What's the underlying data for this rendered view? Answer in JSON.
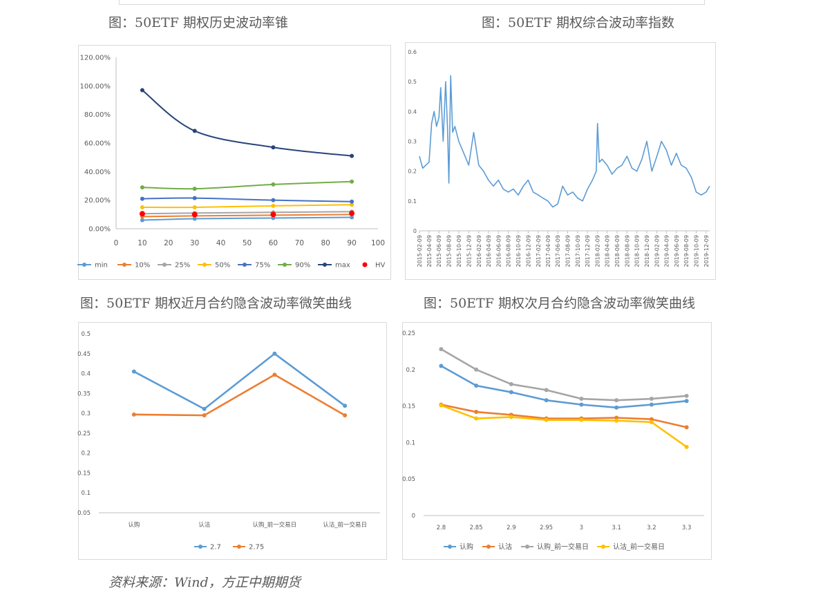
{
  "captions": {
    "c1": "图：50ETF 期权历史波动率锥",
    "c2": "图：50ETF 期权综合波动率指数",
    "c3": "图：50ETF 期权近月合约隐含波动率微笑曲线",
    "c4": "图：50ETF 期权次月合约隐含波动率微笑曲线"
  },
  "source": "资料来源：Wind，方正中期期货",
  "chart_data": [
    {
      "type": "line",
      "x": [
        10,
        30,
        60,
        90
      ],
      "xlim": [
        0,
        100
      ],
      "xticks": [
        0,
        10,
        20,
        30,
        40,
        50,
        60,
        70,
        80,
        90,
        100
      ],
      "ylim": [
        0,
        1.2
      ],
      "yticks": [
        "0.00%",
        "20.00%",
        "40.00%",
        "60.00%",
        "80.00%",
        "100.00%",
        "120.00%"
      ],
      "grid": false,
      "legend": "bottom",
      "series": [
        {
          "name": "min",
          "color": "#5b9bd5",
          "values": [
            0.06,
            0.07,
            0.075,
            0.08
          ]
        },
        {
          "name": "10%",
          "color": "#ed7d31",
          "values": [
            0.085,
            0.09,
            0.095,
            0.1
          ]
        },
        {
          "name": "25%",
          "color": "#a5a5a5",
          "values": [
            0.105,
            0.11,
            0.115,
            0.12
          ]
        },
        {
          "name": "50%",
          "color": "#ffc000",
          "values": [
            0.15,
            0.15,
            0.16,
            0.168
          ]
        },
        {
          "name": "75%",
          "color": "#4472c4",
          "values": [
            0.21,
            0.215,
            0.2,
            0.19
          ]
        },
        {
          "name": "90%",
          "color": "#70ad47",
          "values": [
            0.29,
            0.28,
            0.31,
            0.33
          ]
        },
        {
          "name": "max",
          "color": "#264478",
          "values": [
            0.97,
            0.685,
            0.57,
            0.51
          ]
        },
        {
          "name": "HV",
          "color": "#ff0000",
          "marker_only": true,
          "values": [
            0.105,
            0.1,
            0.1,
            0.108
          ]
        }
      ]
    },
    {
      "type": "line",
      "ylim": [
        0,
        0.6
      ],
      "yticks": [
        "0",
        "0.1",
        "0.2",
        "0.3",
        "0.4",
        "0.5",
        "0.6"
      ],
      "grid": false,
      "color": "#5b9bd5",
      "xticks": [
        "2015-02-09",
        "2015-04-09",
        "2015-06-09",
        "2015-08-09",
        "2015-10-09",
        "2015-12-09",
        "2016-02-09",
        "2016-04-09",
        "2016-06-09",
        "2016-08-09",
        "2016-10-09",
        "2016-12-09",
        "2017-02-09",
        "2017-04-09",
        "2017-06-09",
        "2017-08-09",
        "2017-10-09",
        "2017-12-09",
        "2018-02-09",
        "2018-04-09",
        "2018-06-09",
        "2018-08-09",
        "2018-10-09",
        "2018-12-09",
        "2019-02-09",
        "2019-04-09",
        "2019-06-09",
        "2019-08-09",
        "2019-10-09",
        "2019-12-09"
      ],
      "x": [
        "2015-02-09",
        "2015-03-01",
        "2015-03-20",
        "2015-04-09",
        "2015-04-25",
        "2015-05-10",
        "2015-05-25",
        "2015-06-09",
        "2015-06-20",
        "2015-07-05",
        "2015-07-20",
        "2015-08-01",
        "2015-08-09",
        "2015-08-20",
        "2015-09-01",
        "2015-09-15",
        "2015-10-09",
        "2015-11-09",
        "2015-12-09",
        "2016-01-09",
        "2016-02-09",
        "2016-03-09",
        "2016-04-09",
        "2016-05-09",
        "2016-06-09",
        "2016-07-09",
        "2016-08-09",
        "2016-09-09",
        "2016-10-09",
        "2016-11-09",
        "2016-12-09",
        "2017-01-09",
        "2017-02-09",
        "2017-03-09",
        "2017-04-09",
        "2017-05-09",
        "2017-06-09",
        "2017-07-09",
        "2017-08-09",
        "2017-09-09",
        "2017-10-09",
        "2017-11-09",
        "2017-12-09",
        "2018-01-09",
        "2018-02-01",
        "2018-02-09",
        "2018-02-20",
        "2018-03-09",
        "2018-04-09",
        "2018-05-09",
        "2018-06-09",
        "2018-07-09",
        "2018-08-09",
        "2018-09-09",
        "2018-10-09",
        "2018-11-09",
        "2018-12-09",
        "2019-01-09",
        "2019-02-09",
        "2019-03-09",
        "2019-04-09",
        "2019-05-09",
        "2019-06-09",
        "2019-07-09",
        "2019-08-09",
        "2019-09-09",
        "2019-10-09",
        "2019-11-09",
        "2019-12-09",
        "2019-12-31"
      ],
      "values": [
        0.25,
        0.21,
        0.22,
        0.23,
        0.36,
        0.4,
        0.35,
        0.38,
        0.48,
        0.3,
        0.5,
        0.34,
        0.16,
        0.52,
        0.33,
        0.35,
        0.3,
        0.26,
        0.22,
        0.33,
        0.22,
        0.2,
        0.17,
        0.15,
        0.17,
        0.14,
        0.13,
        0.14,
        0.12,
        0.15,
        0.17,
        0.13,
        0.12,
        0.11,
        0.1,
        0.08,
        0.09,
        0.15,
        0.12,
        0.13,
        0.11,
        0.1,
        0.14,
        0.17,
        0.2,
        0.36,
        0.23,
        0.24,
        0.22,
        0.19,
        0.21,
        0.22,
        0.25,
        0.21,
        0.2,
        0.24,
        0.3,
        0.2,
        0.25,
        0.3,
        0.27,
        0.22,
        0.26,
        0.22,
        0.21,
        0.18,
        0.13,
        0.12,
        0.13,
        0.15
      ]
    },
    {
      "type": "line",
      "categories": [
        "认购",
        "认沽",
        "认购_前一交易日",
        "认沽_前一交易日"
      ],
      "ylim": [
        0.05,
        0.5
      ],
      "yticks": [
        "0.05",
        "0.1",
        "0.15",
        "0.2",
        "0.25",
        "0.3",
        "0.35",
        "0.4",
        "0.45",
        "0.5"
      ],
      "grid": false,
      "legend": "bottom",
      "series": [
        {
          "name": "2.7",
          "color": "#5b9bd5",
          "values": [
            0.405,
            0.311,
            0.45,
            0.319
          ]
        },
        {
          "name": "2.75",
          "color": "#ed7d31",
          "values": [
            0.297,
            0.295,
            0.397,
            0.295
          ]
        }
      ]
    },
    {
      "type": "line",
      "categories": [
        "2.8",
        "2.85",
        "2.9",
        "2.95",
        "3",
        "3.1",
        "3.2",
        "3.3"
      ],
      "ylim": [
        0,
        0.25
      ],
      "yticks": [
        "0",
        "0.05",
        "0.1",
        "0.15",
        "0.2",
        "0.25"
      ],
      "grid": false,
      "legend": "bottom",
      "series": [
        {
          "name": "认购",
          "color": "#5b9bd5",
          "values": [
            0.205,
            0.178,
            0.169,
            0.158,
            0.152,
            0.148,
            0.152,
            0.157
          ]
        },
        {
          "name": "认沽",
          "color": "#ed7d31",
          "values": [
            0.152,
            0.142,
            0.138,
            0.133,
            0.133,
            0.134,
            0.132,
            0.121
          ]
        },
        {
          "name": "认购_前一交易日",
          "color": "#a5a5a5",
          "values": [
            0.228,
            0.2,
            0.18,
            0.172,
            0.16,
            0.158,
            0.16,
            0.164
          ]
        },
        {
          "name": "认沽_前一交易日",
          "color": "#ffc000",
          "values": [
            0.151,
            0.133,
            0.135,
            0.131,
            0.131,
            0.13,
            0.128,
            0.094
          ]
        }
      ]
    }
  ]
}
